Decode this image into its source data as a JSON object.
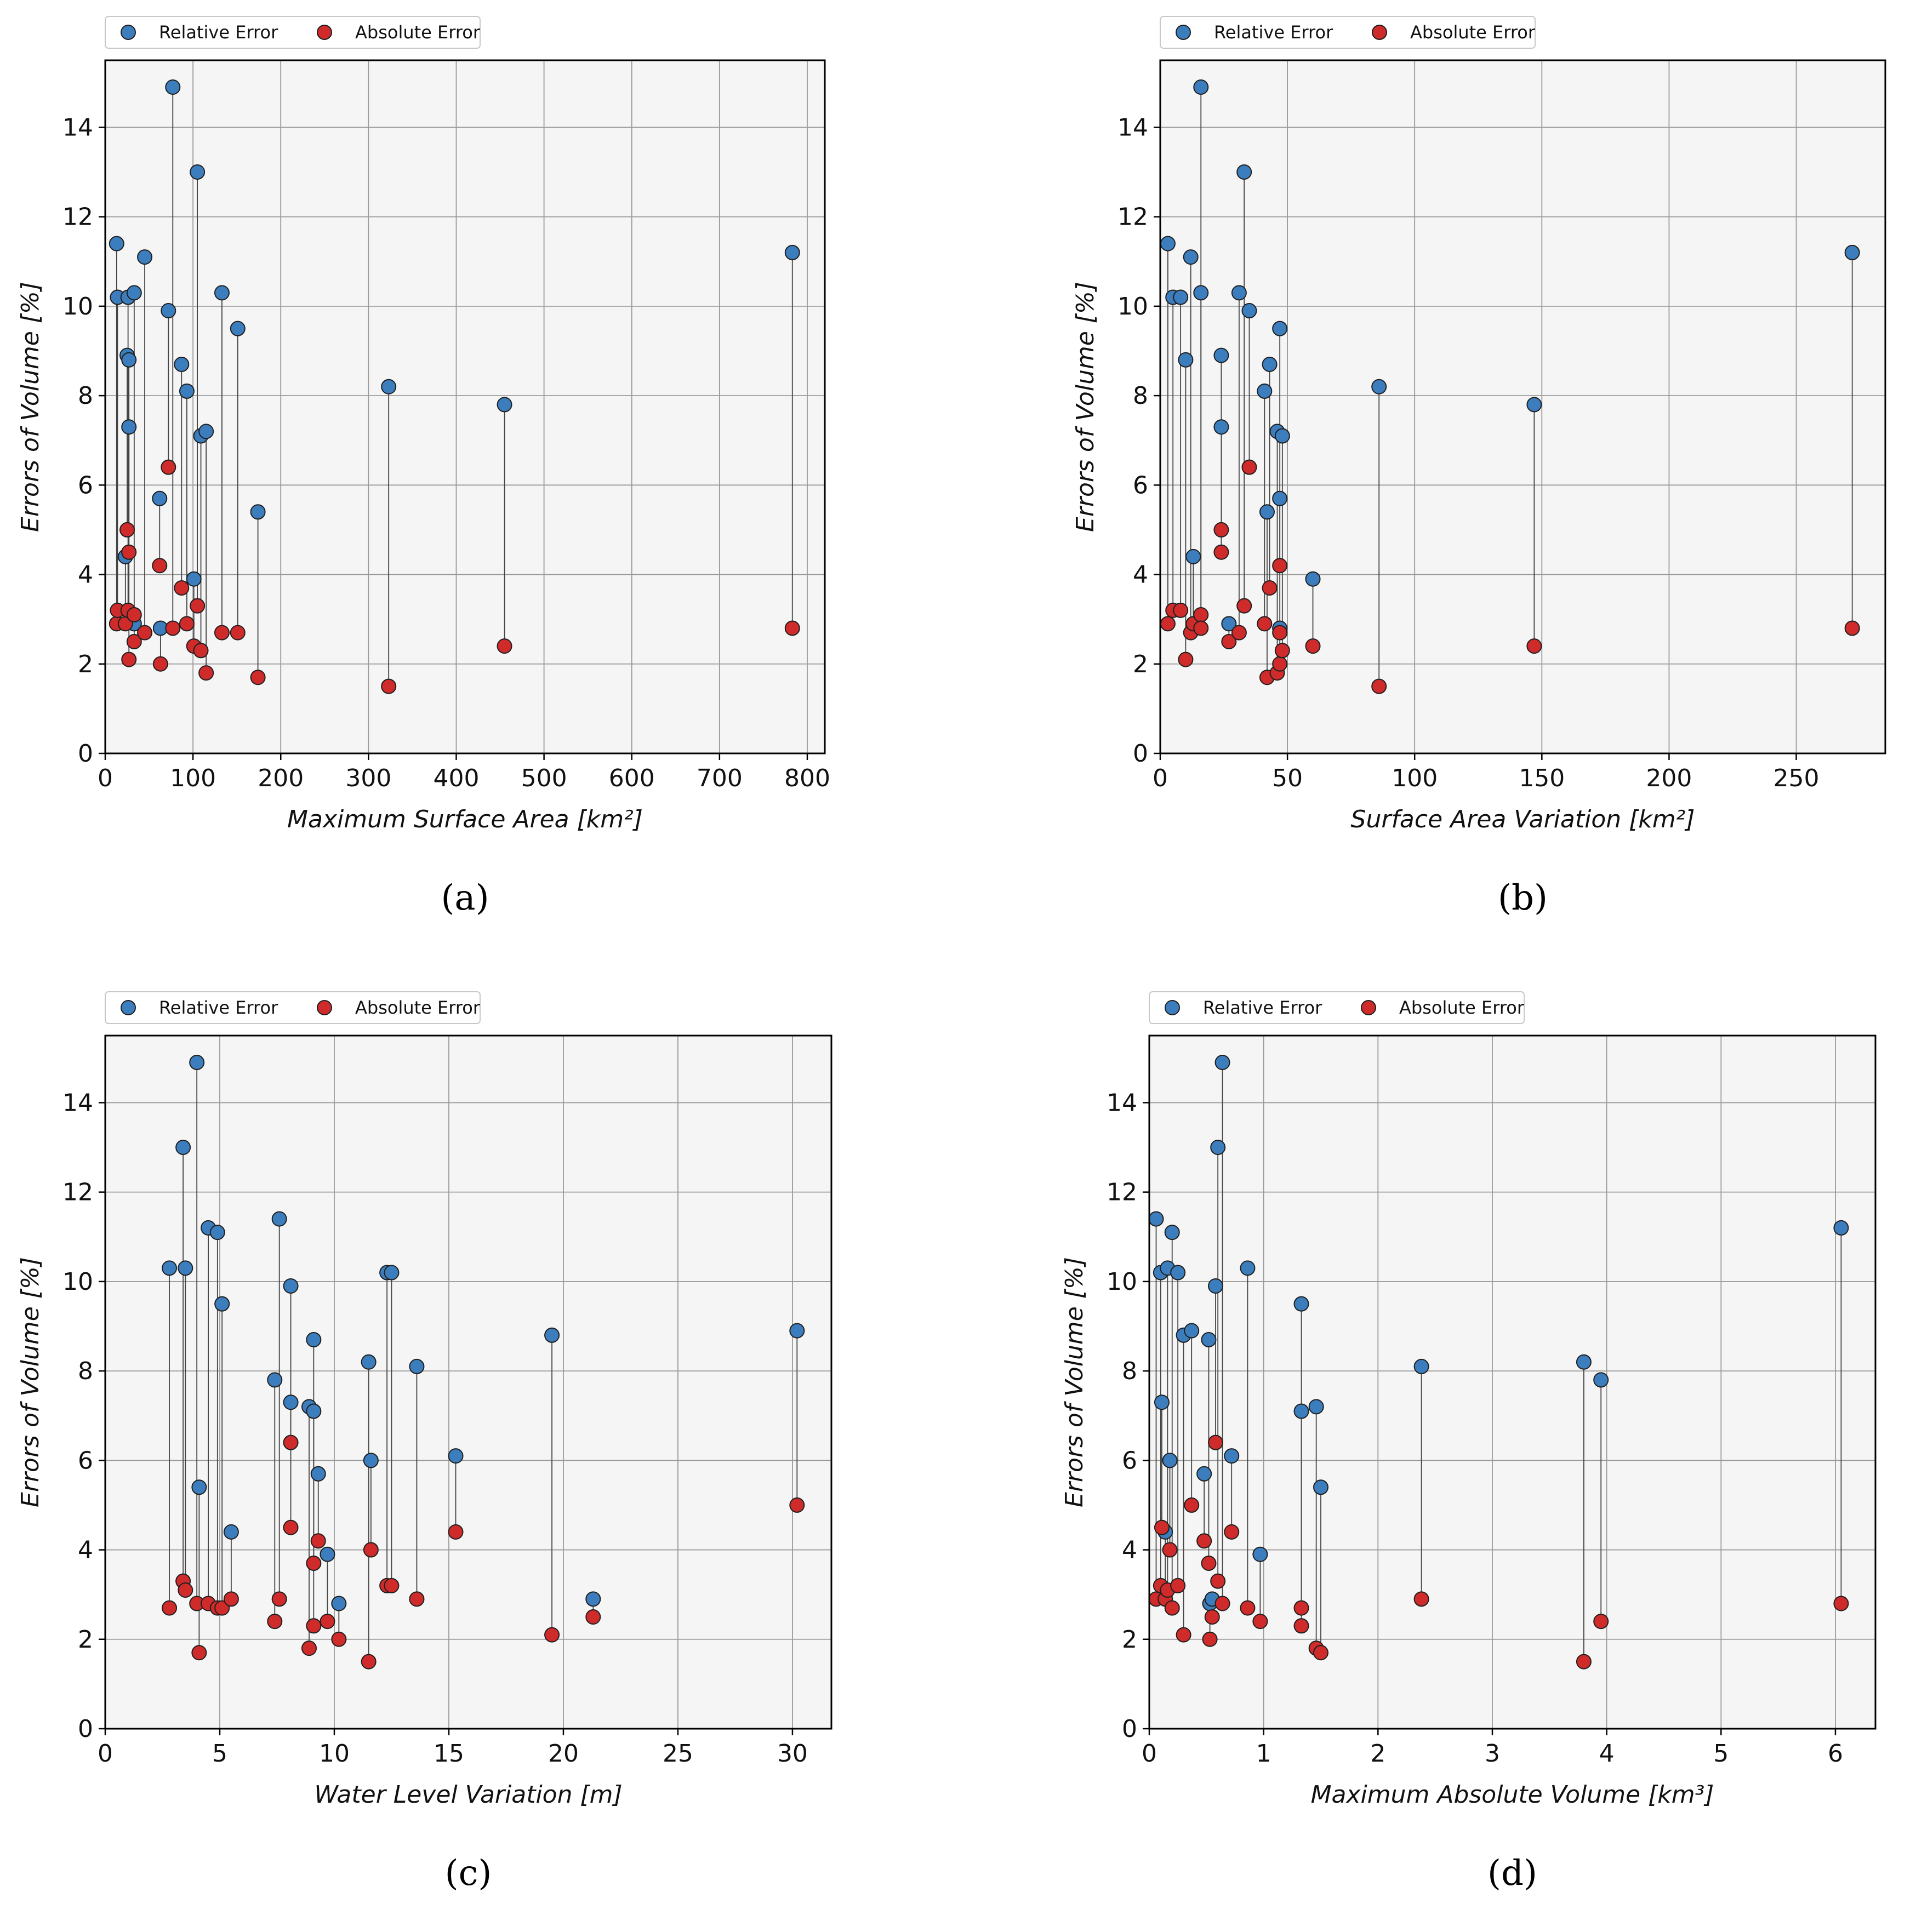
{
  "colors": {
    "relative": "#3c7ebd",
    "absolute": "#cf2b2b",
    "marker_edge": "#1f1f1f"
  },
  "legend": {
    "relative_label": "Relative Error",
    "absolute_label": "Absolute Error"
  },
  "chart_data": [
    {
      "panel": "a",
      "caption": "(a)",
      "type": "scatter",
      "xlabel": "Maximum Surface Area [km²]",
      "ylabel": "Errors of Volume [%]",
      "xlim": [
        0,
        820
      ],
      "ylim": [
        0,
        15.5
      ],
      "xticks": [
        0,
        100,
        200,
        300,
        400,
        500,
        600,
        700,
        800
      ],
      "yticks": [
        0,
        2,
        4,
        6,
        8,
        10,
        12,
        14
      ],
      "points": [
        {
          "x": 13,
          "rel": 11.4,
          "abs": 2.9
        },
        {
          "x": 14,
          "rel": 10.2,
          "abs": 3.2
        },
        {
          "x": 23,
          "rel": 4.4,
          "abs": 2.9
        },
        {
          "x": 25,
          "rel": 8.9,
          "abs": 5.0
        },
        {
          "x": 26,
          "rel": 10.2,
          "abs": 3.2
        },
        {
          "x": 27,
          "rel": 8.8,
          "abs": 4.5
        },
        {
          "x": 27,
          "rel": 7.3,
          "abs": 2.1
        },
        {
          "x": 33,
          "rel": 10.3,
          "abs": 3.1
        },
        {
          "x": 33,
          "rel": 2.9,
          "abs": 2.5
        },
        {
          "x": 45,
          "rel": 11.1,
          "abs": 2.7
        },
        {
          "x": 62,
          "rel": 5.7,
          "abs": 4.2
        },
        {
          "x": 63,
          "rel": 2.8,
          "abs": 2.0
        },
        {
          "x": 72,
          "rel": 9.9,
          "abs": 6.4
        },
        {
          "x": 77,
          "rel": 14.9,
          "abs": 2.8
        },
        {
          "x": 87,
          "rel": 8.7,
          "abs": 3.7
        },
        {
          "x": 93,
          "rel": 8.1,
          "abs": 2.9
        },
        {
          "x": 101,
          "rel": 3.9,
          "abs": 2.4
        },
        {
          "x": 105,
          "rel": 13.0,
          "abs": 3.3
        },
        {
          "x": 109,
          "rel": 7.1,
          "abs": 2.3
        },
        {
          "x": 115,
          "rel": 7.2,
          "abs": 1.8
        },
        {
          "x": 133,
          "rel": 10.3,
          "abs": 2.7
        },
        {
          "x": 151,
          "rel": 9.5,
          "abs": 2.7
        },
        {
          "x": 174,
          "rel": 5.4,
          "abs": 1.7
        },
        {
          "x": 323,
          "rel": 8.2,
          "abs": 1.5
        },
        {
          "x": 455,
          "rel": 7.8,
          "abs": 2.4
        },
        {
          "x": 783,
          "rel": 11.2,
          "abs": 2.8
        }
      ]
    },
    {
      "panel": "b",
      "caption": "(b)",
      "type": "scatter",
      "xlabel": "Surface Area Variation [km²]",
      "ylabel": "Errors of Volume [%]",
      "xlim": [
        0,
        285
      ],
      "ylim": [
        0,
        15.5
      ],
      "xticks": [
        0,
        50,
        100,
        150,
        200,
        250
      ],
      "yticks": [
        0,
        2,
        4,
        6,
        8,
        10,
        12,
        14
      ],
      "points": [
        {
          "x": 3,
          "rel": 11.4,
          "abs": 2.9
        },
        {
          "x": 5,
          "rel": 10.2,
          "abs": 3.2
        },
        {
          "x": 8,
          "rel": 10.2,
          "abs": 3.2
        },
        {
          "x": 10,
          "rel": 8.8,
          "abs": 2.1
        },
        {
          "x": 12,
          "rel": 11.1,
          "abs": 2.7
        },
        {
          "x": 13,
          "rel": 4.4,
          "abs": 2.9
        },
        {
          "x": 16,
          "rel": 10.3,
          "abs": 3.1
        },
        {
          "x": 16,
          "rel": 14.9,
          "abs": 2.8
        },
        {
          "x": 24,
          "rel": 8.9,
          "abs": 5.0
        },
        {
          "x": 24,
          "rel": 7.3,
          "abs": 4.5
        },
        {
          "x": 27,
          "rel": 2.9,
          "abs": 2.5
        },
        {
          "x": 31,
          "rel": 10.3,
          "abs": 2.7
        },
        {
          "x": 33,
          "rel": 13.0,
          "abs": 3.3
        },
        {
          "x": 35,
          "rel": 9.9,
          "abs": 6.4
        },
        {
          "x": 41,
          "rel": 8.1,
          "abs": 2.9
        },
        {
          "x": 42,
          "rel": 5.4,
          "abs": 1.7
        },
        {
          "x": 43,
          "rel": 8.7,
          "abs": 3.7
        },
        {
          "x": 46,
          "rel": 7.2,
          "abs": 1.8
        },
        {
          "x": 47,
          "rel": 5.7,
          "abs": 4.2
        },
        {
          "x": 47,
          "rel": 2.8,
          "abs": 2.0
        },
        {
          "x": 47,
          "rel": 9.5,
          "abs": 2.7
        },
        {
          "x": 48,
          "rel": 7.1,
          "abs": 2.3
        },
        {
          "x": 60,
          "rel": 3.9,
          "abs": 2.4
        },
        {
          "x": 86,
          "rel": 8.2,
          "abs": 1.5
        },
        {
          "x": 147,
          "rel": 7.8,
          "abs": 2.4
        },
        {
          "x": 272,
          "rel": 11.2,
          "abs": 2.8
        }
      ]
    },
    {
      "panel": "c",
      "caption": "(c)",
      "type": "scatter",
      "xlabel": "Water Level Variation [m]",
      "ylabel": "Errors of Volume [%]",
      "xlim": [
        0,
        31.7
      ],
      "ylim": [
        0,
        15.5
      ],
      "xticks": [
        0,
        5,
        10,
        15,
        20,
        25,
        30
      ],
      "yticks": [
        0,
        2,
        4,
        6,
        8,
        10,
        12,
        14
      ],
      "points": [
        {
          "x": 2.8,
          "rel": 10.3,
          "abs": 2.7
        },
        {
          "x": 3.4,
          "rel": 13.0,
          "abs": 3.3
        },
        {
          "x": 3.5,
          "rel": 10.3,
          "abs": 3.1
        },
        {
          "x": 4.0,
          "rel": 14.9,
          "abs": 2.8
        },
        {
          "x": 4.1,
          "rel": 5.4,
          "abs": 1.7
        },
        {
          "x": 4.5,
          "rel": 11.2,
          "abs": 2.8
        },
        {
          "x": 4.9,
          "rel": 11.1,
          "abs": 2.7
        },
        {
          "x": 5.1,
          "rel": 9.5,
          "abs": 2.7
        },
        {
          "x": 5.5,
          "rel": 4.4,
          "abs": 2.9
        },
        {
          "x": 7.4,
          "rel": 7.8,
          "abs": 2.4
        },
        {
          "x": 7.6,
          "rel": 11.4,
          "abs": 2.9
        },
        {
          "x": 8.1,
          "rel": 9.9,
          "abs": 6.4
        },
        {
          "x": 8.1,
          "rel": 7.3,
          "abs": 4.5
        },
        {
          "x": 8.9,
          "rel": 7.2,
          "abs": 1.8
        },
        {
          "x": 9.1,
          "rel": 8.7,
          "abs": 3.7
        },
        {
          "x": 9.1,
          "rel": 7.1,
          "abs": 2.3
        },
        {
          "x": 9.3,
          "rel": 5.7,
          "abs": 4.2
        },
        {
          "x": 9.7,
          "rel": 3.9,
          "abs": 2.4
        },
        {
          "x": 10.2,
          "rel": 2.8,
          "abs": 2.0
        },
        {
          "x": 11.5,
          "rel": 8.2,
          "abs": 1.5
        },
        {
          "x": 11.6,
          "rel": 6.0,
          "abs": 4.0
        },
        {
          "x": 12.3,
          "rel": 10.2,
          "abs": 3.2
        },
        {
          "x": 12.5,
          "rel": 10.2,
          "abs": 3.2
        },
        {
          "x": 13.6,
          "rel": 8.1,
          "abs": 2.9
        },
        {
          "x": 15.3,
          "rel": 6.1,
          "abs": 4.4
        },
        {
          "x": 19.5,
          "rel": 8.8,
          "abs": 2.1
        },
        {
          "x": 21.3,
          "rel": 2.9,
          "abs": 2.5
        },
        {
          "x": 30.2,
          "rel": 8.9,
          "abs": 5.0
        }
      ]
    },
    {
      "panel": "d",
      "caption": "(d)",
      "type": "scatter",
      "xlabel": "Maximum Absolute Volume [km³]",
      "ylabel": "Errors of Volume [%]",
      "xlim": [
        0,
        6.35
      ],
      "ylim": [
        0,
        15.5
      ],
      "xticks": [
        0,
        1,
        2,
        3,
        4,
        5,
        6
      ],
      "yticks": [
        0,
        2,
        4,
        6,
        8,
        10,
        12,
        14
      ],
      "points": [
        {
          "x": 0.06,
          "rel": 11.4,
          "abs": 2.9
        },
        {
          "x": 0.1,
          "rel": 10.2,
          "abs": 3.2
        },
        {
          "x": 0.11,
          "rel": 7.3,
          "abs": 4.5
        },
        {
          "x": 0.14,
          "rel": 4.4,
          "abs": 2.9
        },
        {
          "x": 0.16,
          "rel": 10.3,
          "abs": 3.1
        },
        {
          "x": 0.18,
          "rel": 6.0,
          "abs": 4.0
        },
        {
          "x": 0.2,
          "rel": 11.1,
          "abs": 2.7
        },
        {
          "x": 0.25,
          "rel": 10.2,
          "abs": 3.2
        },
        {
          "x": 0.3,
          "rel": 8.8,
          "abs": 2.1
        },
        {
          "x": 0.37,
          "rel": 8.9,
          "abs": 5.0
        },
        {
          "x": 0.48,
          "rel": 5.7,
          "abs": 4.2
        },
        {
          "x": 0.52,
          "rel": 8.7,
          "abs": 3.7
        },
        {
          "x": 0.53,
          "rel": 2.8,
          "abs": 2.0
        },
        {
          "x": 0.55,
          "rel": 2.9,
          "abs": 2.5
        },
        {
          "x": 0.58,
          "rel": 9.9,
          "abs": 6.4
        },
        {
          "x": 0.6,
          "rel": 13.0,
          "abs": 3.3
        },
        {
          "x": 0.64,
          "rel": 14.9,
          "abs": 2.8
        },
        {
          "x": 0.72,
          "rel": 6.1,
          "abs": 4.4
        },
        {
          "x": 0.86,
          "rel": 10.3,
          "abs": 2.7
        },
        {
          "x": 0.97,
          "rel": 3.9,
          "abs": 2.4
        },
        {
          "x": 1.33,
          "rel": 9.5,
          "abs": 2.7
        },
        {
          "x": 1.33,
          "rel": 7.1,
          "abs": 2.3
        },
        {
          "x": 1.46,
          "rel": 7.2,
          "abs": 1.8
        },
        {
          "x": 1.5,
          "rel": 5.4,
          "abs": 1.7
        },
        {
          "x": 2.38,
          "rel": 8.1,
          "abs": 2.9
        },
        {
          "x": 3.8,
          "rel": 8.2,
          "abs": 1.5
        },
        {
          "x": 3.95,
          "rel": 7.8,
          "abs": 2.4
        },
        {
          "x": 6.05,
          "rel": 11.2,
          "abs": 2.8
        }
      ]
    }
  ]
}
